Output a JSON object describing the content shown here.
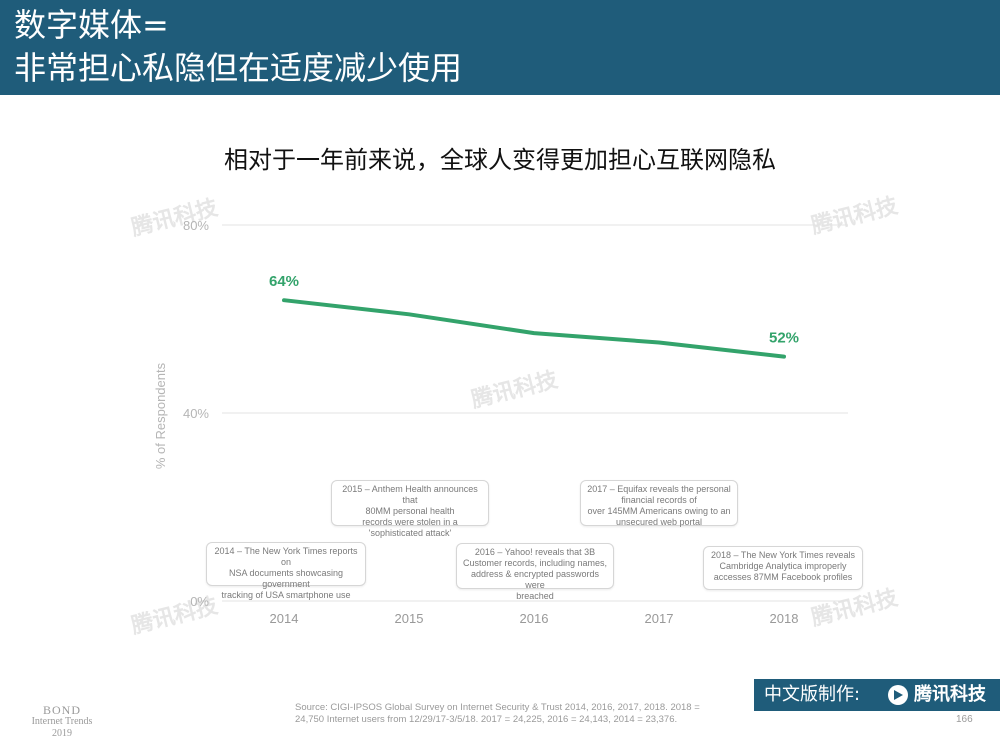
{
  "header": {
    "line1": "数字媒体=",
    "line2": "非常担心私隐但在适度减少使用"
  },
  "chart_data": {
    "type": "line",
    "title": "相对于一年前来说，全球人变得更加担心互联网隐私",
    "ylabel": "% of Respondents",
    "xlabel": "",
    "ylim": [
      0,
      80
    ],
    "yticks": [
      "0%",
      "40%",
      "80%"
    ],
    "ytick_values": [
      0,
      40,
      80
    ],
    "categories": [
      "2014",
      "2015",
      "2016",
      "2017",
      "2018"
    ],
    "series": [
      {
        "values": [
          64,
          61,
          57,
          55,
          52
        ],
        "color": "#33a36b"
      }
    ],
    "data_labels": [
      {
        "category": "2014",
        "text": "64%"
      },
      {
        "category": "2018",
        "text": "52%"
      }
    ],
    "grid": true
  },
  "annotations": [
    {
      "line1": "2014 – The New York Times reports on",
      "line2": "NSA documents showcasing government",
      "line3": "tracking of USA smartphone use"
    },
    {
      "line1": "2015 – Anthem Health announces that",
      "line2": "80MM personal health",
      "line3": "records were stolen in a",
      "line4": "'sophisticated attack'"
    },
    {
      "line1": "2016 – Yahoo! reveals that 3B",
      "line2": "Customer records, including names,",
      "line3": "address & encrypted passwords were",
      "line4": "breached"
    },
    {
      "line1": "2017 – Equifax reveals the personal",
      "line2": "financial records of",
      "line3": "over 145MM Americans owing to an",
      "line4": "unsecured web portal"
    },
    {
      "line1": "2018 – The New York Times reveals",
      "line2": "Cambridge Analytica improperly",
      "line3": "accesses 87MM Facebook profiles"
    }
  ],
  "footer": {
    "bond": "BOND",
    "internet_trends": "Internet Trends",
    "year": "2019",
    "source_line1": "Source: CIGI-IPSOS Global Survey on Internet Security & Trust 2014, 2016, 2017, 2018. 2018 =",
    "source_line2": "24,750 Internet users from 12/29/17-3/5/18. 2017 = 24,225, 2016 = 24,143, 2014 = 23,376.",
    "page": "166",
    "brand_label": "中文版制作:",
    "brand_name": "腾讯科技",
    "brand_accent": "#1f5c7a"
  },
  "watermark": "腾讯科技"
}
